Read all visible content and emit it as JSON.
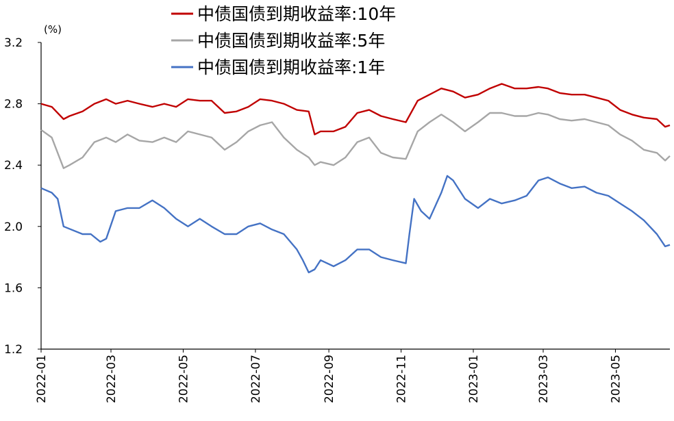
{
  "chart_data": {
    "type": "line",
    "unit_label": "(%)",
    "ylim": [
      1.2,
      3.2
    ],
    "yticks": [
      "3.2",
      "2.8",
      "2.4",
      "2.0",
      "1.6",
      "1.2"
    ],
    "xticks": [
      "2022-01",
      "2022-03",
      "2022-05",
      "2022-07",
      "2022-09",
      "2022-11",
      "2023-01",
      "2023-03",
      "2023-05"
    ],
    "xlim": [
      "2022-01-01",
      "2023-06-16"
    ],
    "legend_position": "top",
    "grid": false,
    "series": [
      {
        "name": "中债国债到期收益率:10年",
        "color": "#c00000",
        "x": [
          "2022-01-01",
          "2022-01-10",
          "2022-01-20",
          "2022-01-25",
          "2022-02-05",
          "2022-02-15",
          "2022-02-25",
          "2022-03-05",
          "2022-03-15",
          "2022-03-25",
          "2022-04-05",
          "2022-04-15",
          "2022-04-25",
          "2022-05-05",
          "2022-05-15",
          "2022-05-25",
          "2022-06-05",
          "2022-06-15",
          "2022-06-25",
          "2022-07-05",
          "2022-07-15",
          "2022-07-25",
          "2022-08-05",
          "2022-08-15",
          "2022-08-20",
          "2022-08-25",
          "2022-09-05",
          "2022-09-15",
          "2022-09-25",
          "2022-10-05",
          "2022-10-15",
          "2022-10-25",
          "2022-11-05",
          "2022-11-15",
          "2022-11-25",
          "2022-12-05",
          "2022-12-15",
          "2022-12-25",
          "2023-01-05",
          "2023-01-15",
          "2023-01-25",
          "2023-02-05",
          "2023-02-15",
          "2023-02-25",
          "2023-03-05",
          "2023-03-15",
          "2023-03-25",
          "2023-04-05",
          "2023-04-15",
          "2023-04-25",
          "2023-05-05",
          "2023-05-15",
          "2023-05-25",
          "2023-06-05",
          "2023-06-12",
          "2023-06-16"
        ],
        "values": [
          2.8,
          2.78,
          2.7,
          2.72,
          2.75,
          2.8,
          2.83,
          2.8,
          2.82,
          2.8,
          2.78,
          2.8,
          2.78,
          2.83,
          2.82,
          2.82,
          2.74,
          2.75,
          2.78,
          2.83,
          2.82,
          2.8,
          2.76,
          2.75,
          2.6,
          2.62,
          2.62,
          2.65,
          2.74,
          2.76,
          2.72,
          2.7,
          2.68,
          2.82,
          2.86,
          2.9,
          2.88,
          2.84,
          2.86,
          2.9,
          2.93,
          2.9,
          2.9,
          2.91,
          2.9,
          2.87,
          2.86,
          2.86,
          2.84,
          2.82,
          2.76,
          2.73,
          2.71,
          2.7,
          2.65,
          2.66
        ]
      },
      {
        "name": "中债国债到期收益率:5年",
        "color": "#a6a6a6",
        "x": [
          "2022-01-01",
          "2022-01-10",
          "2022-01-20",
          "2022-01-25",
          "2022-02-05",
          "2022-02-15",
          "2022-02-25",
          "2022-03-05",
          "2022-03-15",
          "2022-03-25",
          "2022-04-05",
          "2022-04-15",
          "2022-04-25",
          "2022-05-05",
          "2022-05-15",
          "2022-05-25",
          "2022-06-05",
          "2022-06-15",
          "2022-06-25",
          "2022-07-05",
          "2022-07-15",
          "2022-07-25",
          "2022-08-05",
          "2022-08-15",
          "2022-08-20",
          "2022-08-25",
          "2022-09-05",
          "2022-09-15",
          "2022-09-25",
          "2022-10-05",
          "2022-10-15",
          "2022-10-25",
          "2022-11-05",
          "2022-11-15",
          "2022-11-25",
          "2022-12-05",
          "2022-12-15",
          "2022-12-25",
          "2023-01-05",
          "2023-01-15",
          "2023-01-25",
          "2023-02-05",
          "2023-02-15",
          "2023-02-25",
          "2023-03-05",
          "2023-03-15",
          "2023-03-25",
          "2023-04-05",
          "2023-04-15",
          "2023-04-25",
          "2023-05-05",
          "2023-05-15",
          "2023-05-25",
          "2023-06-05",
          "2023-06-12",
          "2023-06-16"
        ],
        "values": [
          2.63,
          2.58,
          2.38,
          2.4,
          2.45,
          2.55,
          2.58,
          2.55,
          2.6,
          2.56,
          2.55,
          2.58,
          2.55,
          2.62,
          2.6,
          2.58,
          2.5,
          2.55,
          2.62,
          2.66,
          2.68,
          2.58,
          2.5,
          2.45,
          2.4,
          2.42,
          2.4,
          2.45,
          2.55,
          2.58,
          2.48,
          2.45,
          2.44,
          2.62,
          2.68,
          2.73,
          2.68,
          2.62,
          2.68,
          2.74,
          2.74,
          2.72,
          2.72,
          2.74,
          2.73,
          2.7,
          2.69,
          2.7,
          2.68,
          2.66,
          2.6,
          2.56,
          2.5,
          2.48,
          2.43,
          2.46
        ]
      },
      {
        "name": "中债国债到期收益率:1年",
        "color": "#4472c4",
        "x": [
          "2022-01-01",
          "2022-01-10",
          "2022-01-15",
          "2022-01-20",
          "2022-02-05",
          "2022-02-12",
          "2022-02-20",
          "2022-02-25",
          "2022-03-05",
          "2022-03-15",
          "2022-03-25",
          "2022-04-05",
          "2022-04-15",
          "2022-04-25",
          "2022-05-05",
          "2022-05-15",
          "2022-05-25",
          "2022-06-05",
          "2022-06-15",
          "2022-06-25",
          "2022-07-05",
          "2022-07-15",
          "2022-07-25",
          "2022-08-05",
          "2022-08-10",
          "2022-08-15",
          "2022-08-20",
          "2022-08-25",
          "2022-09-05",
          "2022-09-15",
          "2022-09-25",
          "2022-10-05",
          "2022-10-15",
          "2022-10-25",
          "2022-11-05",
          "2022-11-08",
          "2022-11-12",
          "2022-11-18",
          "2022-11-25",
          "2022-12-05",
          "2022-12-10",
          "2022-12-15",
          "2022-12-25",
          "2023-01-05",
          "2023-01-15",
          "2023-01-25",
          "2023-02-05",
          "2023-02-15",
          "2023-02-25",
          "2023-03-05",
          "2023-03-15",
          "2023-03-25",
          "2023-04-05",
          "2023-04-15",
          "2023-04-25",
          "2023-05-05",
          "2023-05-15",
          "2023-05-25",
          "2023-06-05",
          "2023-06-12",
          "2023-06-16"
        ],
        "values": [
          2.25,
          2.22,
          2.18,
          2.0,
          1.95,
          1.95,
          1.9,
          1.92,
          2.1,
          2.12,
          2.12,
          2.17,
          2.12,
          2.05,
          2.0,
          2.05,
          2.0,
          1.95,
          1.95,
          2.0,
          2.02,
          1.98,
          1.95,
          1.85,
          1.78,
          1.7,
          1.72,
          1.78,
          1.74,
          1.78,
          1.85,
          1.85,
          1.8,
          1.78,
          1.76,
          1.95,
          2.18,
          2.1,
          2.05,
          2.22,
          2.33,
          2.3,
          2.18,
          2.12,
          2.18,
          2.15,
          2.17,
          2.2,
          2.3,
          2.32,
          2.28,
          2.25,
          2.26,
          2.22,
          2.2,
          2.15,
          2.1,
          2.04,
          1.95,
          1.87,
          1.88
        ]
      }
    ]
  }
}
